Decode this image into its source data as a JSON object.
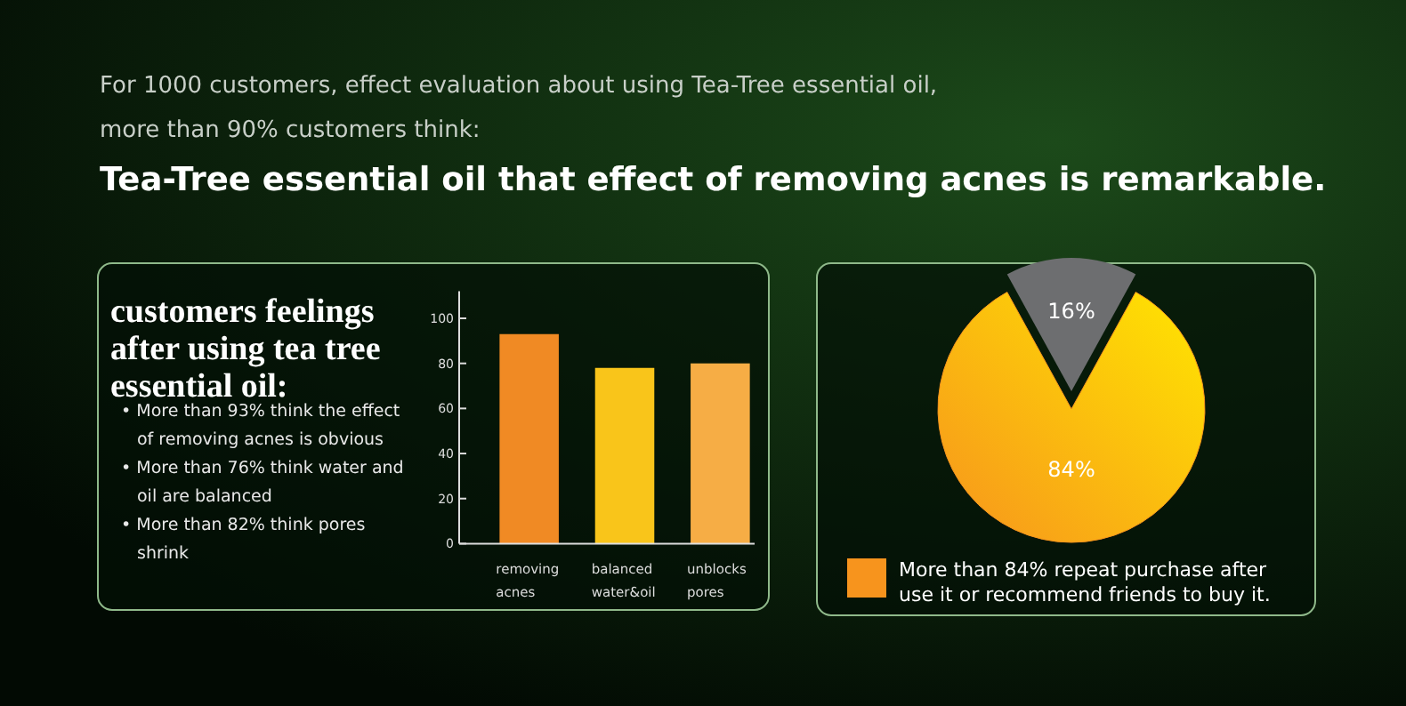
{
  "chart_data": [
    {
      "type": "other",
      "title": "Tea-Tree essential oil that effect of removing acnes is remarkable.",
      "annotations": [
        "For 1000 customers, effect evaluation about using Tea-Tree essential oil,",
        "more than 90% customers think:"
      ]
    },
    {
      "type": "bar",
      "title": "customers feelings after using tea tree essential oil:",
      "annotations": [
        "• More than 93% think the effect of removing acnes is obvious",
        "• More than 76% think water and oil are balanced",
        "• More than 82% think pores shrink"
      ],
      "categories": [
        "removing acnes",
        "balanced water&oil",
        "unblocks pores"
      ],
      "values": [
        93,
        78,
        80
      ],
      "colors": [
        "#f08a24",
        "#f9c51a",
        "#f6ad45"
      ],
      "ylim": [
        0,
        112
      ],
      "yticks": [
        0,
        20,
        40,
        60,
        80,
        100
      ],
      "grid": false
    },
    {
      "type": "pie",
      "categories": [
        "More than 84% repeat purchase after use it or recommend friends to buy it.",
        null
      ],
      "values": [
        84,
        16
      ],
      "colors": [
        "#f7941d",
        "#6d6e70"
      ],
      "value_labels": [
        "84%",
        "16%"
      ],
      "legend": "bottom"
    }
  ]
}
